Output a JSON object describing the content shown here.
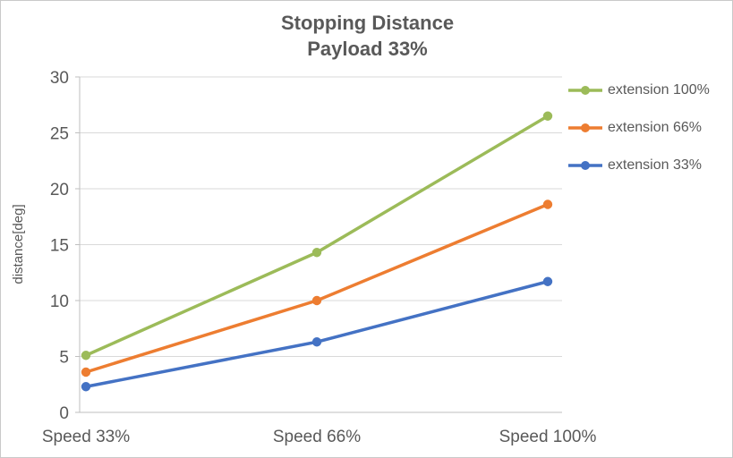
{
  "chart_data": {
    "type": "line",
    "title": "Stopping Distance",
    "subtitle": "Payload 33%",
    "xlabel": "",
    "ylabel": "distance[deg]",
    "ylim": [
      0,
      30
    ],
    "ytick_step": 5,
    "grid": true,
    "legend_position": "right",
    "categories": [
      "Speed 33%",
      "Speed 66%",
      "Speed 100%"
    ],
    "series": [
      {
        "name": "extension 100%",
        "color": "#9CBB59",
        "values": [
          5.1,
          14.3,
          26.5
        ]
      },
      {
        "name": "extension 66%",
        "color": "#ED7D31",
        "values": [
          3.6,
          10.0,
          18.6
        ]
      },
      {
        "name": "extension 33%",
        "color": "#4472C4",
        "values": [
          2.3,
          6.3,
          11.7
        ]
      }
    ],
    "colors": {
      "text": "#595959",
      "grid": "#D9D9D9",
      "axis": "#BFBFBF",
      "background": "#FFFFFF",
      "border": "#C9C9C9"
    }
  }
}
